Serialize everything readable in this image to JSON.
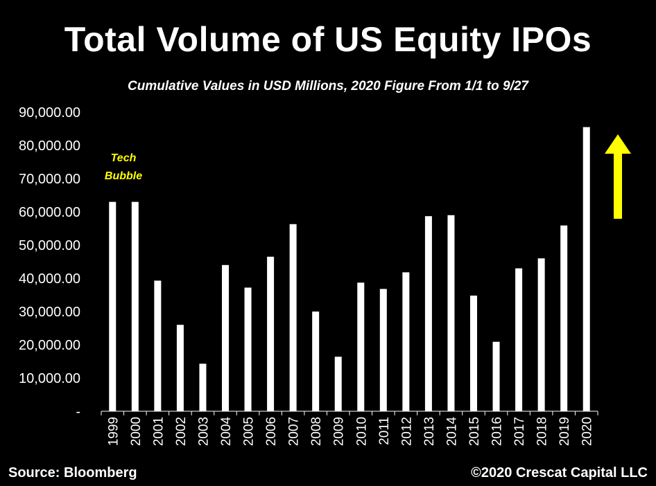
{
  "header": {
    "title": "Total Volume of US Equity IPOs",
    "subtitle": "Cumulative Values in USD Millions, 2020 Figure From 1/1 to 9/27"
  },
  "footer": {
    "source": "Source: Bloomberg",
    "copyright": "©2020 Crescat Capital LLC"
  },
  "colors": {
    "background": "#000000",
    "bars": "#ffffff",
    "annotation": "#ffff00",
    "arrow": "#ffff00"
  },
  "chart_data": {
    "type": "bar",
    "title": "Total Volume of US Equity IPOs",
    "subtitle": "Cumulative Values in USD Millions, 2020 Figure From 1/1 to 9/27",
    "categories": [
      "1999",
      "2000",
      "2001",
      "2002",
      "2003",
      "2004",
      "2005",
      "2006",
      "2007",
      "2008",
      "2009",
      "2010",
      "2011",
      "2012",
      "2013",
      "2014",
      "2015",
      "2016",
      "2017",
      "2018",
      "2019",
      "2020"
    ],
    "values": [
      63000,
      63000,
      39300,
      26000,
      14300,
      44000,
      37200,
      46500,
      56300,
      30000,
      16400,
      38700,
      36800,
      41800,
      58700,
      59000,
      34800,
      20900,
      43000,
      46000,
      55900,
      85500
    ],
    "ylim": [
      0,
      90000
    ],
    "yticks": [
      "-",
      "10,000.00",
      "20,000.00",
      "30,000.00",
      "40,000.00",
      "50,000.00",
      "60,000.00",
      "70,000.00",
      "80,000.00",
      "90,000.00"
    ],
    "grid": false,
    "annotations": [
      {
        "text": "Tech Bubble",
        "near": "1999-2000"
      },
      {
        "type": "arrow",
        "direction": "up",
        "near": "2020"
      }
    ]
  }
}
